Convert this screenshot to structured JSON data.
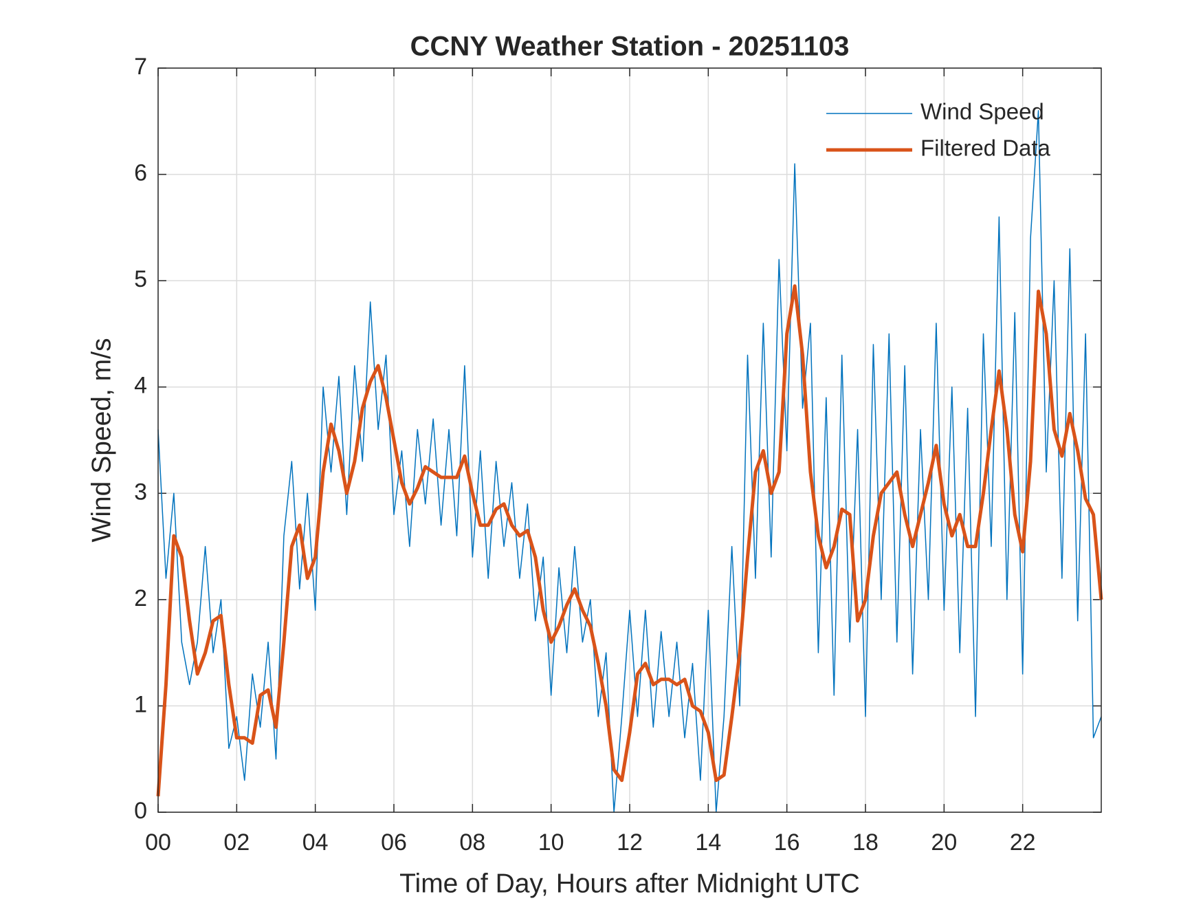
{
  "chart_data": {
    "type": "line",
    "title": "CCNY Weather Station - 20251103",
    "xlabel": "Time of Day, Hours after Midnight UTC",
    "ylabel": "Wind Speed, m/s",
    "x": [
      0,
      0.2,
      0.4,
      0.6,
      0.8,
      1,
      1.2,
      1.4,
      1.6,
      1.8,
      2,
      2.2,
      2.4,
      2.6,
      2.8,
      3,
      3.2,
      3.4,
      3.6,
      3.8,
      4,
      4.2,
      4.4,
      4.6,
      4.8,
      5,
      5.2,
      5.4,
      5.6,
      5.8,
      6,
      6.2,
      6.4,
      6.6,
      6.8,
      7,
      7.2,
      7.4,
      7.6,
      7.8,
      8,
      8.2,
      8.4,
      8.6,
      8.8,
      9,
      9.2,
      9.4,
      9.6,
      9.8,
      10,
      10.2,
      10.4,
      10.6,
      10.8,
      11,
      11.2,
      11.4,
      11.6,
      11.8,
      12,
      12.2,
      12.4,
      12.6,
      12.8,
      13,
      13.2,
      13.4,
      13.6,
      13.8,
      14,
      14.2,
      14.4,
      14.6,
      14.8,
      15,
      15.2,
      15.4,
      15.6,
      15.8,
      16,
      16.2,
      16.4,
      16.6,
      16.8,
      17,
      17.2,
      17.4,
      17.6,
      17.8,
      18,
      18.2,
      18.4,
      18.6,
      18.8,
      19,
      19.2,
      19.4,
      19.6,
      19.8,
      20,
      20.2,
      20.4,
      20.6,
      20.8,
      21,
      21.2,
      21.4,
      21.6,
      21.8,
      22,
      22.2,
      22.4,
      22.6,
      22.8,
      23,
      23.2,
      23.4,
      23.6,
      23.8,
      24
    ],
    "series": [
      {
        "name": "Wind Speed",
        "color": "#0072BD",
        "width": 1.5,
        "values": [
          3.6,
          2.2,
          3.0,
          1.6,
          1.2,
          1.6,
          2.5,
          1.5,
          2.0,
          0.6,
          0.9,
          0.3,
          1.3,
          0.8,
          1.6,
          0.5,
          2.6,
          3.3,
          2.1,
          3.0,
          1.9,
          4.0,
          3.2,
          4.1,
          2.8,
          4.2,
          3.3,
          4.8,
          3.6,
          4.3,
          2.8,
          3.4,
          2.5,
          3.6,
          2.9,
          3.7,
          2.7,
          3.6,
          2.6,
          4.2,
          2.4,
          3.4,
          2.2,
          3.3,
          2.5,
          3.1,
          2.2,
          2.9,
          1.8,
          2.4,
          1.1,
          2.3,
          1.5,
          2.5,
          1.6,
          2.0,
          0.9,
          1.5,
          0.0,
          0.9,
          1.9,
          0.9,
          1.9,
          0.8,
          1.7,
          0.9,
          1.6,
          0.7,
          1.4,
          0.3,
          1.9,
          0.0,
          0.9,
          2.5,
          1.0,
          4.3,
          2.2,
          4.6,
          2.4,
          5.2,
          3.4,
          6.1,
          3.8,
          4.6,
          1.5,
          3.9,
          1.1,
          4.3,
          1.6,
          3.6,
          0.9,
          4.4,
          2.0,
          4.5,
          1.6,
          4.2,
          1.3,
          3.6,
          2.0,
          4.6,
          1.9,
          4.0,
          1.5,
          3.8,
          0.9,
          4.5,
          2.5,
          5.6,
          2.0,
          4.7,
          1.3,
          5.4,
          6.6,
          3.2,
          5.0,
          2.2,
          5.3,
          1.8,
          4.5,
          0.7,
          0.9
        ]
      },
      {
        "name": "Filtered Data",
        "color": "#D95319",
        "width": 5,
        "values": [
          0.15,
          1.2,
          2.6,
          2.4,
          1.8,
          1.3,
          1.5,
          1.8,
          1.85,
          1.2,
          0.7,
          0.7,
          0.65,
          1.1,
          1.15,
          0.8,
          1.6,
          2.5,
          2.7,
          2.2,
          2.4,
          3.2,
          3.65,
          3.4,
          3.0,
          3.3,
          3.8,
          4.05,
          4.2,
          3.9,
          3.5,
          3.1,
          2.9,
          3.05,
          3.25,
          3.2,
          3.15,
          3.15,
          3.15,
          3.35,
          3.0,
          2.7,
          2.7,
          2.85,
          2.9,
          2.7,
          2.6,
          2.65,
          2.4,
          1.9,
          1.6,
          1.75,
          1.95,
          2.1,
          1.9,
          1.75,
          1.4,
          1.0,
          0.4,
          0.3,
          0.75,
          1.3,
          1.4,
          1.2,
          1.25,
          1.25,
          1.2,
          1.25,
          1.0,
          0.95,
          0.75,
          0.3,
          0.35,
          0.9,
          1.5,
          2.4,
          3.2,
          3.4,
          3.0,
          3.2,
          4.5,
          4.95,
          4.3,
          3.2,
          2.6,
          2.3,
          2.5,
          2.85,
          2.8,
          1.8,
          2.0,
          2.6,
          3.0,
          3.1,
          3.2,
          2.8,
          2.5,
          2.8,
          3.1,
          3.45,
          2.9,
          2.6,
          2.8,
          2.5,
          2.5,
          3.0,
          3.6,
          4.15,
          3.6,
          2.8,
          2.45,
          3.3,
          4.9,
          4.5,
          3.6,
          3.35,
          3.75,
          3.4,
          2.95,
          2.8,
          2.0
        ]
      }
    ],
    "xlim": [
      0,
      24
    ],
    "xticks": [
      {
        "value": 0,
        "label": "00"
      },
      {
        "value": 2,
        "label": "02"
      },
      {
        "value": 4,
        "label": "04"
      },
      {
        "value": 6,
        "label": "06"
      },
      {
        "value": 8,
        "label": "08"
      },
      {
        "value": 10,
        "label": "10"
      },
      {
        "value": 12,
        "label": "12"
      },
      {
        "value": 14,
        "label": "14"
      },
      {
        "value": 16,
        "label": "16"
      },
      {
        "value": 18,
        "label": "18"
      },
      {
        "value": 20,
        "label": "20"
      },
      {
        "value": 22,
        "label": "22"
      }
    ],
    "ylim": [
      0,
      7
    ],
    "yticks": [
      0,
      1,
      2,
      3,
      4,
      5,
      6,
      7
    ],
    "grid": true,
    "legend": "upper-right"
  }
}
